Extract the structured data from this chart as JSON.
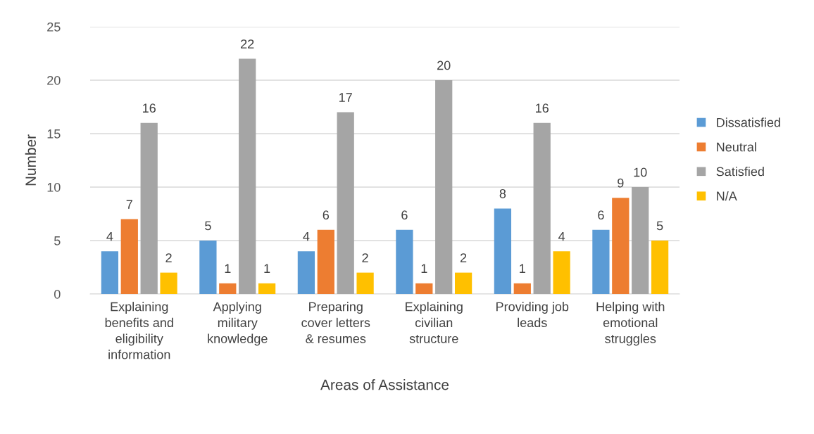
{
  "chart_data": {
    "type": "bar",
    "xlabel": "Areas of Assistance",
    "ylabel": "Number",
    "categories": [
      "Explaining\nbenefits and\neligibility\ninformation",
      "Applying\nmilitary\nknowledge",
      "Preparing\ncover letters\n& resumes",
      "Explaining\ncivilian\nstructure",
      "Providing job\nleads",
      "Helping with\nemotional\nstruggles"
    ],
    "series": [
      {
        "name": "Dissatisfied",
        "color": "#5b9bd5",
        "values": [
          4,
          5,
          4,
          6,
          8,
          6
        ]
      },
      {
        "name": "Neutral",
        "color": "#ed7d31",
        "values": [
          7,
          1,
          6,
          1,
          1,
          9
        ]
      },
      {
        "name": "Satisfied",
        "color": "#a5a5a5",
        "values": [
          16,
          22,
          17,
          20,
          16,
          10
        ]
      },
      {
        "name": "N/A",
        "color": "#ffc000",
        "values": [
          2,
          1,
          2,
          2,
          4,
          5
        ]
      }
    ],
    "ylim": [
      0,
      25
    ],
    "yticks": [
      0,
      5,
      10,
      15,
      20,
      25
    ],
    "grid": "y",
    "legend": "right",
    "data_labels": true
  }
}
